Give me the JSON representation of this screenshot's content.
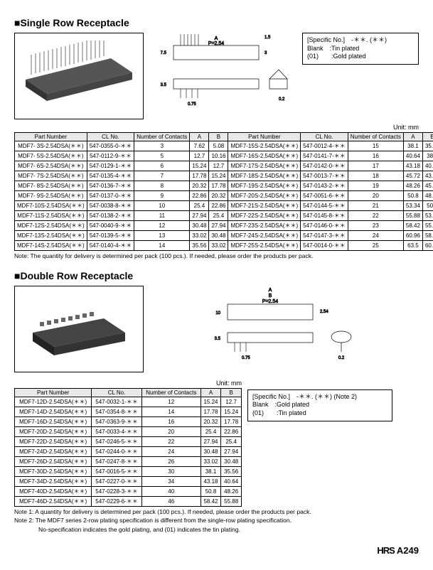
{
  "section1": {
    "title": "■Single Row Receptacle",
    "specBox": {
      "line1": "[Specific No.]　-＊＊. (＊＊)",
      "line2": "Blank　:Tin plated",
      "line3": "(01)　　:Gold plated"
    },
    "unitLabel": "Unit: mm",
    "headers": [
      "Part Number",
      "CL No.",
      "Number of Contacts",
      "A",
      "B",
      "Part Number",
      "CL No.",
      "Number of Contacts",
      "A",
      "B"
    ],
    "rows": [
      [
        "MDF7- 3S-2.54DSA(＊＊)",
        "547-0355-0-＊＊",
        "3",
        "7.62",
        "5.08",
        "MDF7-15S-2.54DSA(＊＊)",
        "547-0012-4-＊＊",
        "15",
        "38.1",
        "35.56"
      ],
      [
        "MDF7- 5S-2.54DSA(＊＊)",
        "547-0112-9-＊＊",
        "5",
        "12.7",
        "10.16",
        "MDF7-16S-2.54DSA(＊＊)",
        "547-0141-7-＊＊",
        "16",
        "40.64",
        "38.1"
      ],
      [
        "MDF7- 6S-2.54DSA(＊＊)",
        "547-0129-1-＊＊",
        "6",
        "15.24",
        "12.7",
        "MDF7-17S-2.54DSA(＊＊)",
        "547-0142-0-＊＊",
        "17",
        "43.18",
        "40.64"
      ],
      [
        "MDF7- 7S-2.54DSA(＊＊)",
        "547-0135-4-＊＊",
        "7",
        "17.78",
        "15.24",
        "MDF7-18S-2.54DSA(＊＊)",
        "547-0013-7-＊＊",
        "18",
        "45.72",
        "43.18"
      ],
      [
        "MDF7- 8S-2.54DSA(＊＊)",
        "547-0136-7-＊＊",
        "8",
        "20.32",
        "17.78",
        "MDF7-19S-2.54DSA(＊＊)",
        "547-0143-2-＊＊",
        "19",
        "48.26",
        "45.72"
      ],
      [
        "MDF7- 9S-2.54DSA(＊＊)",
        "547-0137-0-＊＊",
        "9",
        "22.86",
        "20.32",
        "MDF7-20S-2.54DSA(＊＊)",
        "547-0051-6-＊＊",
        "20",
        "50.8",
        "48.26"
      ],
      [
        "MDF7-10S-2.54DSA(＊＊)",
        "547-0038-8-＊＊",
        "10",
        "25.4",
        "22.86",
        "MDF7-21S-2.54DSA(＊＊)",
        "547-0144-5-＊＊",
        "21",
        "53.34",
        "50.8"
      ],
      [
        "MDF7-11S-2.54DSA(＊＊)",
        "547-0138-2-＊＊",
        "11",
        "27.94",
        "25.4",
        "MDF7-22S-2.54DSA(＊＊)",
        "547-0145-8-＊＊",
        "22",
        "55.88",
        "53.34"
      ],
      [
        "MDF7-12S-2.54DSA(＊＊)",
        "547-0040-9-＊＊",
        "12",
        "30.48",
        "27.94",
        "MDF7-23S-2.54DSA(＊＊)",
        "547-0146-0-＊＊",
        "23",
        "58.42",
        "55.88"
      ],
      [
        "MDF7-13S-2.54DSA(＊＊)",
        "547-0139-5-＊＊",
        "13",
        "33.02",
        "30.48",
        "MDF7-24S-2.54DSA(＊＊)",
        "547-0147-3-＊＊",
        "24",
        "60.96",
        "58.42"
      ],
      [
        "MDF7-14S-2.54DSA(＊＊)",
        "547-0140-4-＊＊",
        "14",
        "35.56",
        "33.02",
        "MDF7-25S-2.54DSA(＊＊)",
        "547-0014-0-＊＊",
        "25",
        "63.5",
        "60.96"
      ]
    ],
    "note": "Note: The quantity for delivery is determined per pack (100 pcs.). If needed, please order the products per pack."
  },
  "section2": {
    "title": "■Double Row Receptacle",
    "unitLabel": "Unit: mm",
    "headers": [
      "Part Number",
      "CL No.",
      "Number of Contacts",
      "A",
      "B"
    ],
    "rows": [
      [
        "MDF7-12D-2.54DSA(＊＊)",
        "547-0032-1-＊＊",
        "12",
        "15.24",
        "12.7"
      ],
      [
        "MDF7-14D-2.54DSA(＊＊)",
        "547-0354-8-＊＊",
        "14",
        "17.78",
        "15.24"
      ],
      [
        "MDF7-16D-2.54DSA(＊＊)",
        "547-0363-9-＊＊",
        "16",
        "20.32",
        "17.78"
      ],
      [
        "MDF7-20D-2.54DSA(＊＊)",
        "547-0033-4-＊＊",
        "20",
        "25.4",
        "22.86"
      ],
      [
        "MDF7-22D-2.54DSA(＊＊)",
        "547-0246-5-＊＊",
        "22",
        "27.94",
        "25.4"
      ],
      [
        "MDF7-24D-2.54DSA(＊＊)",
        "547-0244-0-＊＊",
        "24",
        "30.48",
        "27.94"
      ],
      [
        "MDF7-26D-2.54DSA(＊＊)",
        "547-0247-8-＊＊",
        "26",
        "33.02",
        "30.48"
      ],
      [
        "MDF7-30D-2.54DSA(＊＊)",
        "547-0016-5-＊＊",
        "30",
        "38.1",
        "35.56"
      ],
      [
        "MDF7-34D-2.54DSA(＊＊)",
        "547-0227-0-＊＊",
        "34",
        "43.18",
        "40.64"
      ],
      [
        "MDF7-40D-2.54DSA(＊＊)",
        "547-0228-3-＊＊",
        "40",
        "50.8",
        "48.26"
      ],
      [
        "MDF7-46D-2.54DSA(＊＊)",
        "547-0229-6-＊＊",
        "46",
        "58.42",
        "55.88"
      ]
    ],
    "specBox": {
      "line1": "[Specific No.]　-＊＊. (＊＊) (Note 2)",
      "line2": "Blank　:Gold plated",
      "line3": "(01)　　:Tin plated"
    },
    "note1": "Note 1: A quantity for delivery is determined per pack (100 pcs.). If needed, please order the products per pack.",
    "note2a": "Note 2: The MDF7 series 2-row plating specification is different from the single-row plating specification.",
    "note2b": "　　　　No-specification indicates the gold plating, and (01) indicates the tin plating."
  },
  "footer": {
    "logo": "HRS",
    "page": "A249"
  },
  "schematic": {
    "pitch": "P=2.54",
    "h1": "7.5",
    "h2": "3",
    "h3": "1.5",
    "h4": "3.5",
    "w1": "0.75",
    "w2": "0.2",
    "a": "A",
    "b": "B",
    "h5": "10",
    "h6": "2.54"
  }
}
